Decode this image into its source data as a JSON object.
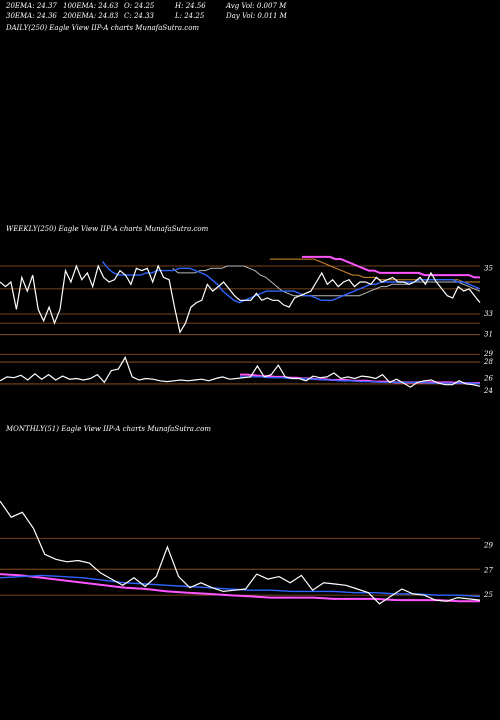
{
  "header": {
    "row1": [
      {
        "label": "20EMA: 24.37"
      },
      {
        "label": "100EMA: 24.63"
      },
      {
        "label": "O: 24.25"
      },
      {
        "label": "H: 24.56"
      },
      {
        "label": "Avg Vol: 0.007 M"
      }
    ],
    "row2": [
      {
        "label": "30EMA: 24.36"
      },
      {
        "label": "200EMA: 24.83"
      },
      {
        "label": "C: 24.33"
      },
      {
        "label": "L: 24.25"
      },
      {
        "label": "Day Vol: 0.011 M"
      }
    ]
  },
  "panels": {
    "daily": {
      "title": "DAILY(250) Eagle   View  IIP-A charts MunafaSutra.com"
    },
    "weekly": {
      "title": "WEEKLY(250) Eagle   View  IIP-A charts MunafaSutra.com"
    },
    "monthly": {
      "title": "MONTHLY(51) Eagle   View  IIP-A charts MunafaSutra.com"
    }
  },
  "chart_data": [
    {
      "type": "line",
      "name": "weekly",
      "upper": {
        "ylim": [
          32.3,
          35.8
        ],
        "yticks": [
          35,
          33
        ],
        "hlines": [
          35.1,
          34.1,
          33.0,
          32.6
        ],
        "price": [
          34.4,
          34.2,
          34.4,
          33.2,
          34.6,
          34.0,
          34.7,
          33.2,
          32.7,
          33.3,
          32.6,
          33.2,
          34.9,
          34.4,
          35.1,
          34.5,
          34.8,
          34.2,
          35.1,
          34.6,
          34.4,
          34.5,
          34.9,
          34.7,
          34.3,
          35.0,
          34.9,
          35.0,
          34.4,
          35.1,
          34.6,
          34.5,
          33.3,
          32.2,
          32.6,
          33.3,
          33.5,
          33.6,
          34.3,
          34.0,
          34.2,
          34.4,
          34.1,
          33.8,
          33.6,
          33.6,
          33.6,
          33.9,
          33.6,
          33.7,
          33.6,
          33.6,
          33.4,
          33.3,
          33.7,
          33.8,
          33.9,
          34.0,
          34.4,
          34.8,
          34.3,
          34.5,
          34.2,
          34.4,
          34.5,
          34.2,
          34.4,
          34.4,
          34.3,
          34.6,
          34.4,
          34.5,
          34.6,
          34.4,
          34.4,
          34.3,
          34.4,
          34.6,
          34.3,
          34.8,
          34.4,
          34.1,
          33.8,
          33.7,
          34.2,
          34.0,
          34.1,
          33.8,
          33.5
        ],
        "ema_fast": [
          35.3,
          35.0,
          34.8,
          34.7,
          34.7,
          34.7,
          34.7,
          34.7,
          34.8,
          34.8,
          34.9,
          34.9,
          34.9,
          34.9,
          35.0,
          35.0,
          35.0,
          34.9,
          34.8,
          34.7,
          34.5,
          34.3,
          34.0,
          33.8,
          33.6,
          33.5,
          33.6,
          33.7,
          33.8,
          33.9,
          34.0,
          34.0,
          34.0,
          34.0,
          34.0,
          34.0,
          33.9,
          33.8,
          33.8,
          33.7,
          33.6,
          33.6,
          33.6,
          33.7,
          33.8,
          33.9,
          34.0,
          34.1,
          34.2,
          34.3,
          34.3,
          34.4,
          34.4,
          34.4,
          34.4,
          34.4,
          34.4,
          34.4,
          34.5,
          34.5,
          34.5,
          34.5,
          34.5,
          34.5,
          34.5,
          34.4,
          34.4,
          34.3,
          34.2,
          34.1
        ],
        "ema_mid": [
          35.0,
          34.8,
          34.8,
          34.8,
          34.8,
          34.9,
          34.9,
          35.0,
          35.0,
          35.0,
          35.1,
          35.1,
          35.1,
          35.1,
          35.0,
          34.9,
          34.7,
          34.6,
          34.4,
          34.2,
          34.0,
          33.9,
          33.8,
          33.8,
          33.8,
          33.8,
          33.8,
          33.8,
          33.8,
          33.8,
          33.8,
          33.8,
          33.8,
          33.8,
          33.8,
          33.9,
          34.0,
          34.1,
          34.2,
          34.2,
          34.3,
          34.3,
          34.3,
          34.3,
          34.4,
          34.4,
          34.4,
          34.4,
          34.4,
          34.4,
          34.4,
          34.4,
          34.4,
          34.3,
          34.2,
          34.1,
          34.0
        ],
        "ema_slow": [
          35.4,
          35.4,
          35.4,
          35.4,
          35.4,
          35.4,
          35.4,
          35.4,
          35.4,
          35.3,
          35.2,
          35.1,
          35.0,
          34.9,
          34.8,
          34.7,
          34.7,
          34.6,
          34.6,
          34.6,
          34.5,
          34.5,
          34.5,
          34.5,
          34.5,
          34.5,
          34.5,
          34.5,
          34.5,
          34.5,
          34.5,
          34.5,
          34.5,
          34.5,
          34.5,
          34.4,
          34.4,
          34.4,
          34.4
        ],
        "ema_long": [
          35.5,
          35.5,
          35.5,
          35.5,
          35.5,
          35.5,
          35.4,
          35.4,
          35.3,
          35.2,
          35.1,
          35.0,
          34.9,
          34.9,
          34.8,
          34.8,
          34.8,
          34.8,
          34.8,
          34.8,
          34.8,
          34.8,
          34.7,
          34.7,
          34.7,
          34.7,
          34.7,
          34.7,
          34.7,
          34.7,
          34.7,
          34.6,
          34.6
        ]
      },
      "lower": {
        "ylim": [
          23.3,
          29.6
        ],
        "yticks": [
          31,
          29,
          28,
          26,
          24
        ],
        "tick_values_axis": [
          31.4,
          28.9,
          27.9,
          25.8,
          24.2
        ],
        "hlines": [
          31.4,
          28.9,
          27.9,
          25.1
        ],
        "price": [
          25.5,
          26.0,
          25.9,
          26.2,
          25.6,
          26.4,
          25.7,
          26.3,
          25.6,
          26.1,
          25.7,
          25.8,
          25.6,
          25.8,
          26.3,
          25.3,
          26.8,
          27.0,
          28.5,
          26.0,
          25.6,
          25.8,
          25.7,
          25.5,
          25.4,
          25.5,
          25.6,
          25.5,
          25.6,
          25.7,
          25.5,
          25.8,
          26.0,
          25.7,
          25.8,
          25.9,
          26.0,
          27.4,
          26.0,
          26.3,
          27.5,
          26.0,
          25.8,
          25.8,
          25.5,
          26.1,
          25.9,
          26.0,
          26.5,
          25.8,
          26.0,
          25.8,
          26.1,
          26.0,
          25.8,
          26.3,
          25.3,
          25.7,
          25.2,
          24.7,
          25.3,
          25.5,
          25.6,
          25.2,
          25.0,
          25.0,
          25.5,
          25.1,
          25.0,
          24.8
        ],
        "ema_a": [
          26.3,
          26.3,
          26.2,
          26.1,
          26.1,
          26.0,
          26.0,
          25.9,
          25.9,
          25.8,
          25.8,
          25.7,
          25.7,
          25.6,
          25.6,
          25.6,
          25.5,
          25.5,
          25.5,
          25.4,
          25.4,
          25.4,
          25.3,
          25.3,
          25.3,
          25.3,
          25.3,
          25.3,
          25.3,
          25.3,
          25.3,
          25.2,
          25.2,
          25.2,
          25.2
        ],
        "ema_b": [
          26.0,
          26.0,
          26.0,
          26.0,
          25.9,
          25.9,
          25.9,
          25.8,
          25.8,
          25.8,
          25.7,
          25.7,
          25.6,
          25.6,
          25.5,
          25.5,
          25.5,
          25.4,
          25.4,
          25.4,
          25.3,
          25.3,
          25.3,
          25.3,
          25.3,
          25.3,
          25.3,
          25.2,
          25.2,
          25.2,
          25.2,
          25.2,
          25.2,
          25.2,
          25.1
        ]
      }
    },
    {
      "type": "line",
      "name": "monthly",
      "ylim": [
        23.8,
        33.5
      ],
      "yticks": [
        29,
        27,
        25
      ],
      "hlines": [
        29.6,
        27.1,
        25.0
      ],
      "price": [
        32.6,
        31.3,
        31.7,
        30.4,
        28.3,
        27.9,
        27.7,
        27.8,
        27.6,
        26.8,
        26.3,
        25.8,
        26.4,
        25.7,
        26.5,
        28.9,
        26.5,
        25.6,
        26.0,
        25.6,
        25.3,
        25.4,
        25.5,
        26.7,
        26.3,
        26.5,
        26.0,
        26.6,
        25.4,
        26.0,
        25.9,
        25.8,
        25.5,
        25.2,
        24.3,
        24.9,
        25.5,
        25.1,
        25.0,
        24.6,
        24.5,
        24.8,
        24.7,
        24.6
      ],
      "ema_a": [
        26.4,
        26.5,
        26.6,
        26.5,
        26.4,
        26.2,
        26.0,
        25.9,
        25.8,
        25.7,
        25.6,
        25.5,
        25.4,
        25.4,
        25.3,
        25.3,
        25.3,
        25.2,
        25.2,
        25.1,
        25.1,
        25.0,
        25.0,
        24.9
      ],
      "ema_b": [
        26.7,
        26.6,
        26.4,
        26.2,
        26.0,
        25.8,
        25.6,
        25.5,
        25.3,
        25.2,
        25.1,
        25.0,
        24.9,
        24.8,
        24.8,
        24.8,
        24.7,
        24.7,
        24.7,
        24.6,
        24.6,
        24.6,
        24.5,
        24.5
      ]
    }
  ],
  "colors": {
    "background": "#000000",
    "price": "#ffffff",
    "ema_blue": "#2f64ff",
    "ema_gray": "#b8b8b8",
    "ema_orange": "#d98a2a",
    "ema_pink": "#ff55ff",
    "hline": "#9c5a2a"
  }
}
